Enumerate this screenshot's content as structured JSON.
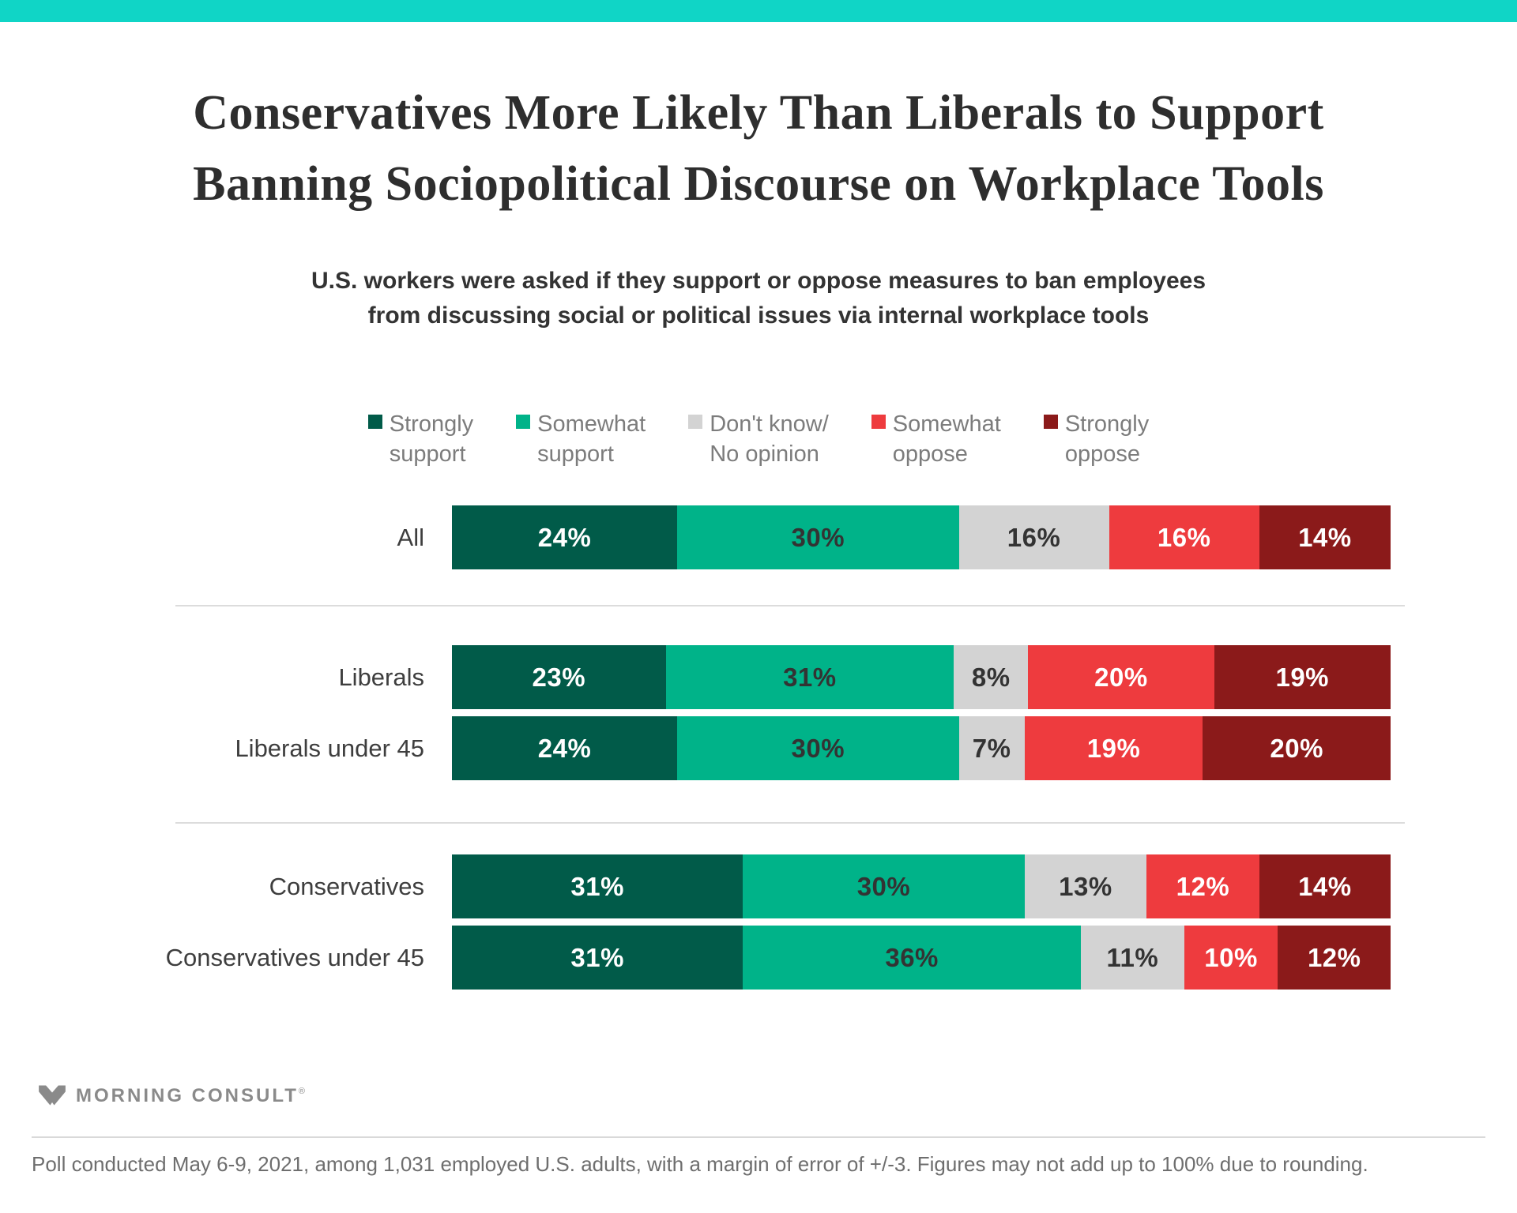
{
  "brand": {
    "top_bar_color": "#10D5C6",
    "logo_text": "MORNING CONSULT",
    "registered_mark": "®"
  },
  "header": {
    "title_lines": [
      "Conservatives More Likely Than Liberals to Support",
      "Banning Sociopolitical Discourse on Workplace Tools"
    ],
    "subtitle_lines": [
      "U.S. workers were asked if they support or oppose measures to ban employees",
      "from discussing social or political issues via internal workplace tools"
    ]
  },
  "chart_data": {
    "type": "bar",
    "stacked": true,
    "orientation": "horizontal",
    "value_suffix": "%",
    "title": "Conservatives More Likely Than Liberals to Support Banning Sociopolitical Discourse on Workplace Tools",
    "legend_position": "top",
    "categories": [
      "All",
      "Liberals",
      "Liberals under 45",
      "Conservatives",
      "Conservatives under 45"
    ],
    "group_breaks_after": [
      0,
      2
    ],
    "series": [
      {
        "name": "Strongly support",
        "label_lines": [
          "Strongly",
          "support"
        ],
        "color": "#015B49",
        "label_text_color": "#FFFFFF",
        "values": [
          24,
          23,
          24,
          31,
          31
        ]
      },
      {
        "name": "Somewhat support",
        "label_lines": [
          "Somewhat",
          "support"
        ],
        "color": "#00B389",
        "label_text_color": "#333333",
        "values": [
          30,
          31,
          30,
          30,
          36
        ]
      },
      {
        "name": "Don't know/No opinion",
        "label_lines": [
          "Don't know/",
          "No opinion"
        ],
        "color": "#D3D3D3",
        "label_text_color": "#333333",
        "values": [
          16,
          8,
          7,
          13,
          11
        ]
      },
      {
        "name": "Somewhat oppose",
        "label_lines": [
          "Somewhat",
          "oppose"
        ],
        "color": "#EE3B3E",
        "label_text_color": "#FFFFFF",
        "values": [
          16,
          20,
          19,
          12,
          10
        ]
      },
      {
        "name": "Strongly oppose",
        "label_lines": [
          "Strongly",
          "oppose"
        ],
        "color": "#8B1A1A",
        "label_text_color": "#FFFFFF",
        "values": [
          14,
          19,
          20,
          14,
          12
        ]
      }
    ]
  },
  "footer": {
    "note": "Poll conducted May 6-9, 2021, among 1,031 employed U.S. adults, with a margin of error of +/-3. Figures may not add up to 100% due to rounding."
  }
}
